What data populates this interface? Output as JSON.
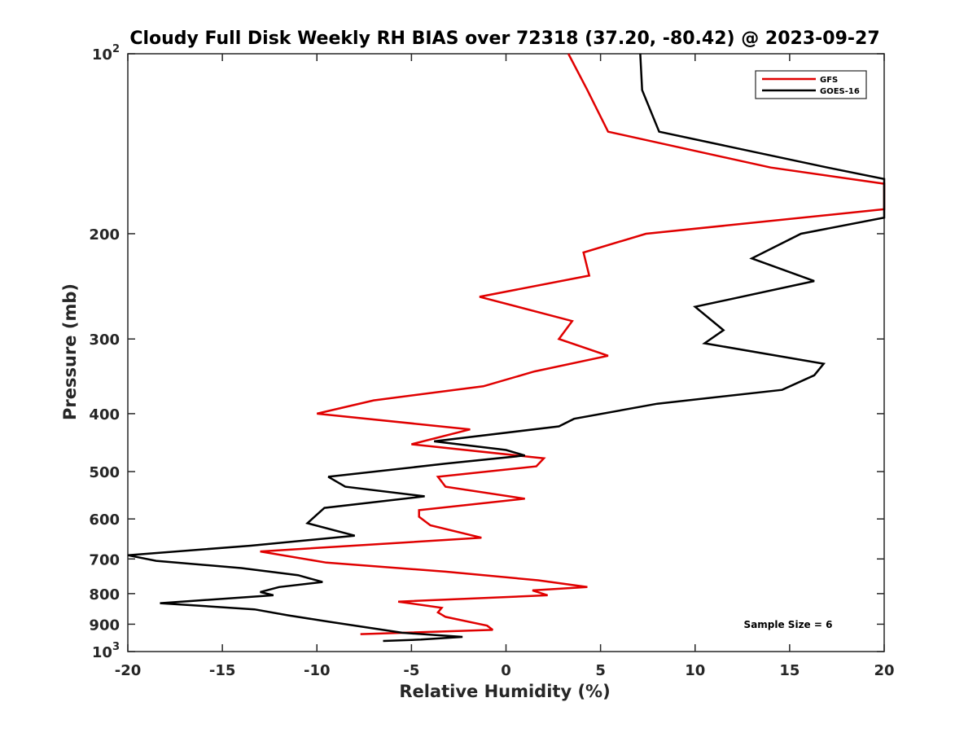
{
  "chart_data": {
    "type": "line",
    "title": "Cloudy Full Disk Weekly RH BIAS over 72318 (37.20, -80.42) @ 2023-09-27",
    "xlabel": "Relative Humidity (%)",
    "ylabel": "Pressure (mb)",
    "xlim": [
      -20,
      20
    ],
    "ylim": [
      100,
      1000
    ],
    "yscale": "log",
    "yreversed": true,
    "x_ticks": [
      -20,
      -15,
      -10,
      -5,
      0,
      5,
      10,
      15,
      20
    ],
    "x_tick_labels": [
      "-20",
      "-15",
      "-10",
      "-5",
      "0",
      "5",
      "10",
      "15",
      "20"
    ],
    "y_ticks": [
      100,
      200,
      300,
      400,
      500,
      600,
      700,
      800,
      900,
      1000
    ],
    "y_tick_labels": [
      "10^2",
      "200",
      "300",
      "400",
      "500",
      "600",
      "700",
      "800",
      "900",
      "10^3"
    ],
    "legend_position": "top-right",
    "annotation": "Sample Size = 6",
    "series": [
      {
        "name": "GFS",
        "color": "#e00000",
        "points": [
          [
            3.3,
            100
          ],
          [
            4.3,
            115
          ],
          [
            5.4,
            135
          ],
          [
            14.0,
            155
          ],
          [
            20.0,
            165
          ],
          [
            20.0,
            182
          ],
          [
            7.4,
            200
          ],
          [
            4.1,
            215
          ],
          [
            4.4,
            235
          ],
          [
            -1.4,
            255
          ],
          [
            3.5,
            280
          ],
          [
            2.8,
            300
          ],
          [
            5.4,
            320
          ],
          [
            1.5,
            340
          ],
          [
            -1.2,
            360
          ],
          [
            -7.0,
            380
          ],
          [
            -10.0,
            400
          ],
          [
            -1.9,
            425
          ],
          [
            -5.0,
            450
          ],
          [
            2.0,
            475
          ],
          [
            1.6,
            490
          ],
          [
            -3.6,
            510
          ],
          [
            -3.2,
            530
          ],
          [
            1.0,
            555
          ],
          [
            -4.6,
            580
          ],
          [
            -4.6,
            595
          ],
          [
            -4.0,
            615
          ],
          [
            -1.3,
            645
          ],
          [
            -13.0,
            680
          ],
          [
            -9.5,
            710
          ],
          [
            -3.2,
            735
          ],
          [
            1.7,
            760
          ],
          [
            4.3,
            780
          ],
          [
            1.4,
            790
          ],
          [
            2.2,
            805
          ],
          [
            -5.7,
            825
          ],
          [
            -3.4,
            845
          ],
          [
            -3.6,
            860
          ],
          [
            -3.2,
            875
          ],
          [
            -1.0,
            905
          ],
          [
            -0.7,
            920
          ],
          [
            -7.7,
            935
          ]
        ]
      },
      {
        "name": "GOES-16",
        "color": "#000000",
        "points": [
          [
            7.1,
            100
          ],
          [
            7.2,
            115
          ],
          [
            8.1,
            135
          ],
          [
            17.0,
            155
          ],
          [
            20.0,
            162
          ],
          [
            20.0,
            188
          ],
          [
            15.6,
            200
          ],
          [
            13.0,
            220
          ],
          [
            16.3,
            240
          ],
          [
            10.0,
            265
          ],
          [
            11.5,
            290
          ],
          [
            10.5,
            305
          ],
          [
            16.8,
            330
          ],
          [
            16.3,
            345
          ],
          [
            14.6,
            365
          ],
          [
            8.0,
            385
          ],
          [
            3.6,
            408
          ],
          [
            2.8,
            420
          ],
          [
            -3.8,
            445
          ],
          [
            0.0,
            460
          ],
          [
            1.0,
            470
          ],
          [
            -3.2,
            485
          ],
          [
            -9.4,
            510
          ],
          [
            -8.5,
            530
          ],
          [
            -4.3,
            550
          ],
          [
            -9.6,
            575
          ],
          [
            -10.0,
            590
          ],
          [
            -10.5,
            610
          ],
          [
            -8.0,
            640
          ],
          [
            -13.5,
            665
          ],
          [
            -20.0,
            690
          ],
          [
            -18.5,
            705
          ],
          [
            -14.0,
            725
          ],
          [
            -11.0,
            745
          ],
          [
            -9.7,
            765
          ],
          [
            -12.0,
            780
          ],
          [
            -13.0,
            795
          ],
          [
            -12.3,
            805
          ],
          [
            -18.3,
            830
          ],
          [
            -13.3,
            850
          ],
          [
            -11.5,
            870
          ],
          [
            -9.5,
            890
          ],
          [
            -7.5,
            910
          ],
          [
            -5.5,
            930
          ],
          [
            -2.3,
            945
          ],
          [
            -4.5,
            955
          ],
          [
            -6.5,
            960
          ]
        ]
      }
    ]
  }
}
